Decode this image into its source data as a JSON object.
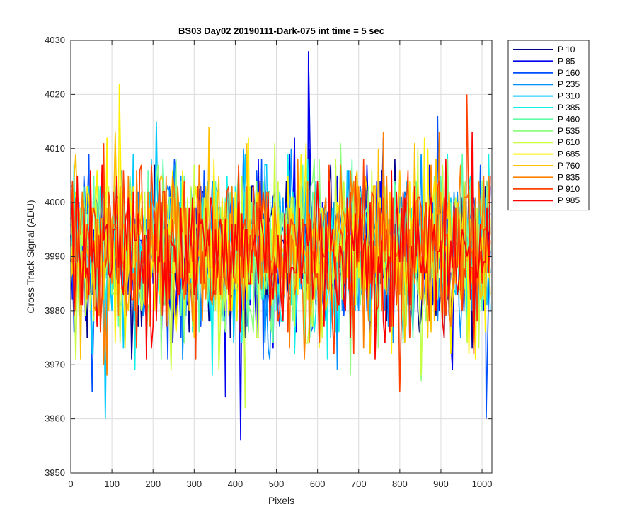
{
  "chart_data": {
    "type": "line",
    "title": "BS03 Day02 20190111-Dark-075 int time = 5 sec",
    "xlabel": "Pixels",
    "ylabel": "Cross Track Signal (ADU)",
    "xlim": [
      0,
      1024
    ],
    "ylim": [
      3950,
      4030
    ],
    "xticks": [
      0,
      100,
      200,
      300,
      400,
      500,
      600,
      700,
      800,
      900,
      1000
    ],
    "yticks": [
      3950,
      3960,
      3970,
      3980,
      3990,
      4000,
      4010,
      4020,
      4030
    ],
    "grid": true,
    "legend_position": "outside-right",
    "series_summary": {
      "points_per_series": 1024,
      "mean_approx": 3991,
      "typical_range": [
        3974,
        4008
      ],
      "notable_extremes": [
        {
          "series": "P 85",
          "x": 578,
          "y": 4028
        },
        {
          "series": "P 85",
          "x": 413,
          "y": 3956
        },
        {
          "series": "P 685",
          "x": 118,
          "y": 4022
        },
        {
          "series": "P 910",
          "x": 963,
          "y": 4020
        },
        {
          "series": "P 160",
          "x": 1010,
          "y": 3960
        }
      ]
    },
    "series": [
      {
        "name": "P 10",
        "color": "#00008F"
      },
      {
        "name": "P 85",
        "color": "#0000EF"
      },
      {
        "name": "P 160",
        "color": "#0050FF"
      },
      {
        "name": "P 235",
        "color": "#0090FF"
      },
      {
        "name": "P 310",
        "color": "#00C8FF"
      },
      {
        "name": "P 385",
        "color": "#10F0E8"
      },
      {
        "name": "P 460",
        "color": "#60FFA8"
      },
      {
        "name": "P 535",
        "color": "#90FF80"
      },
      {
        "name": "P 610",
        "color": "#C8FF40"
      },
      {
        "name": "P 685",
        "color": "#FFF000"
      },
      {
        "name": "P 760",
        "color": "#FFC000"
      },
      {
        "name": "P 835",
        "color": "#FF8000"
      },
      {
        "name": "P 910",
        "color": "#FF4000"
      },
      {
        "name": "P 985",
        "color": "#FF0000"
      }
    ]
  }
}
